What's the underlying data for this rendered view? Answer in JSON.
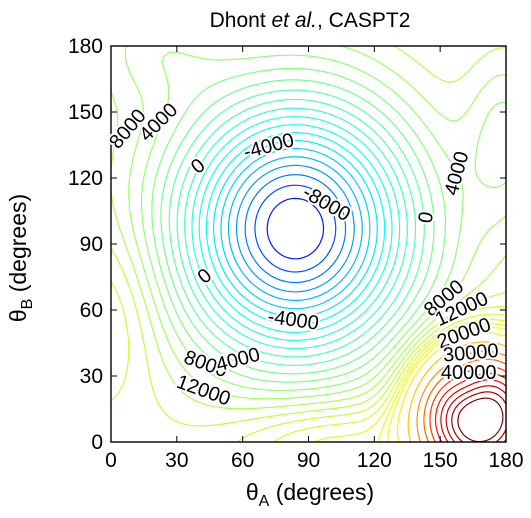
{
  "chart_data": {
    "type": "contour",
    "title_parts": [
      "Dhont ",
      "et al.",
      ", CASPT2"
    ],
    "xlabel": {
      "symbol": "θ",
      "subscript": "A",
      "unit": " (degrees)"
    },
    "ylabel": {
      "symbol": "θ",
      "subscript": "B",
      "unit": " (degrees)"
    },
    "xlim": [
      0,
      180
    ],
    "ylim": [
      0,
      180
    ],
    "x_ticks": [
      "0",
      "30",
      "60",
      "90",
      "120",
      "150",
      "180"
    ],
    "y_ticks": [
      "0",
      "30",
      "60",
      "90",
      "120",
      "150",
      "180"
    ],
    "grid": false,
    "colormap": "jet",
    "contour_labels": [
      {
        "text": "8000",
        "x": 8,
        "y": 142,
        "angle": -50
      },
      {
        "text": "4000",
        "x": 22,
        "y": 145,
        "angle": -45
      },
      {
        "text": "0",
        "x": 40,
        "y": 125,
        "angle": -40
      },
      {
        "text": "-4000",
        "x": 72,
        "y": 134,
        "angle": -15
      },
      {
        "text": "-8000",
        "x": 98,
        "y": 108,
        "angle": 30
      },
      {
        "text": "4000",
        "x": 158,
        "y": 122,
        "angle": -75
      },
      {
        "text": "0",
        "x": 144,
        "y": 102,
        "angle": -80
      },
      {
        "text": "0",
        "x": 43,
        "y": 75,
        "angle": -40
      },
      {
        "text": "-4000",
        "x": 83,
        "y": 55,
        "angle": 8
      },
      {
        "text": "8000",
        "x": 43,
        "y": 35,
        "angle": 20
      },
      {
        "text": "4000",
        "x": 58,
        "y": 37,
        "angle": -15
      },
      {
        "text": "12000",
        "x": 42,
        "y": 23,
        "angle": 20
      },
      {
        "text": "8000",
        "x": 152,
        "y": 65,
        "angle": -40
      },
      {
        "text": "12000",
        "x": 160,
        "y": 60,
        "angle": -25
      },
      {
        "text": "20000",
        "x": 161,
        "y": 49,
        "angle": -20
      },
      {
        "text": "30000",
        "x": 164,
        "y": 40,
        "angle": -5
      },
      {
        "text": "40000",
        "x": 163,
        "y": 31,
        "angle": 0
      }
    ],
    "levels": [
      -10000,
      -9000,
      -8000,
      -7000,
      -6000,
      -5000,
      -4000,
      -3000,
      -2000,
      -1000,
      0,
      1000,
      2000,
      3000,
      4000,
      5000,
      6000,
      7000,
      8000,
      9000,
      10000,
      11000,
      12000,
      13000,
      14000,
      16000,
      20000,
      25000,
      30000,
      35000,
      40000,
      45000,
      50000,
      55000,
      60000
    ]
  }
}
